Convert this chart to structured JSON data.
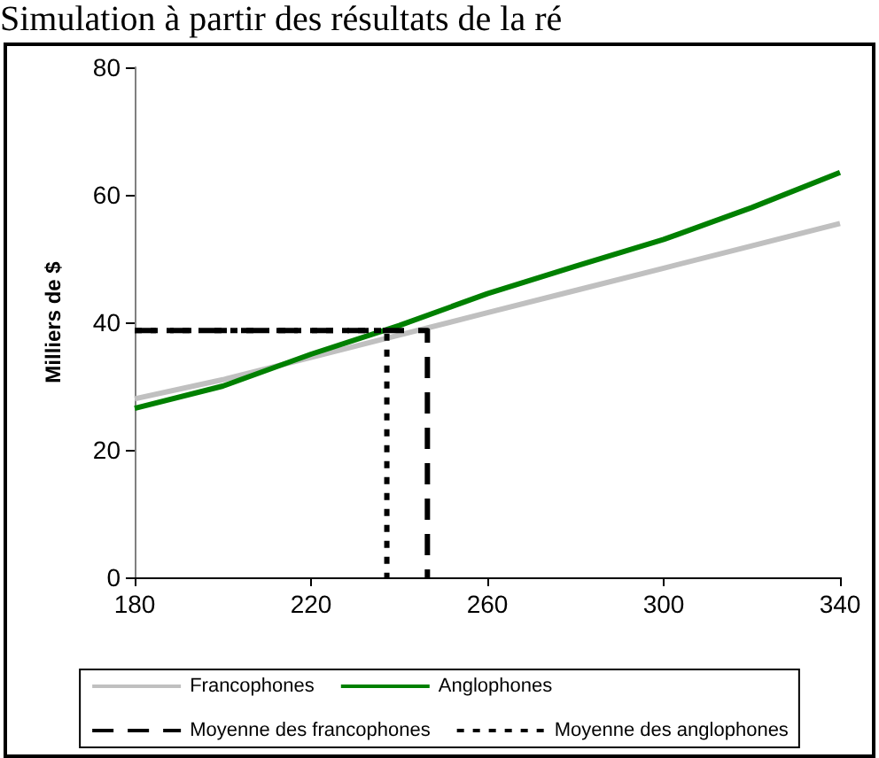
{
  "chart_data": {
    "type": "line",
    "title": "Simulation à partir des résultats de la ré",
    "ylabel": "Milliers de $",
    "xlim": [
      180,
      340
    ],
    "xticks": [
      180,
      220,
      260,
      300,
      340
    ],
    "ylim": [
      0,
      80
    ],
    "yticks": [
      0,
      20,
      40,
      60,
      80
    ],
    "grid": false,
    "legend": "bottom",
    "marker": "none",
    "series": [
      {
        "name": "Francophones",
        "color": "#c0c0c0",
        "line_style": "solid",
        "x": [
          180,
          200,
          220,
          240,
          260,
          280,
          300,
          320,
          340
        ],
        "values": [
          28,
          31,
          34.5,
          38,
          41.5,
          45,
          48.5,
          52,
          55.5
        ]
      },
      {
        "name": "Anglophones",
        "color": "#008000",
        "line_style": "solid",
        "x": [
          180,
          200,
          220,
          240,
          260,
          280,
          300,
          320,
          340
        ],
        "values": [
          26.5,
          30,
          35,
          39.5,
          44.5,
          48.8,
          53,
          58,
          63.5
        ]
      },
      {
        "name": "Moyenne des francophones",
        "color": "#000000",
        "line_style": "dashed",
        "x": [
          180,
          246.4,
          246.4
        ],
        "values": [
          38.7,
          38.7,
          0
        ]
      },
      {
        "name": "Moyenne des anglophones",
        "color": "#000000",
        "line_style": "dotted",
        "x": [
          180,
          237.2,
          237.2
        ],
        "values": [
          38.7,
          38.7,
          0
        ]
      }
    ]
  }
}
